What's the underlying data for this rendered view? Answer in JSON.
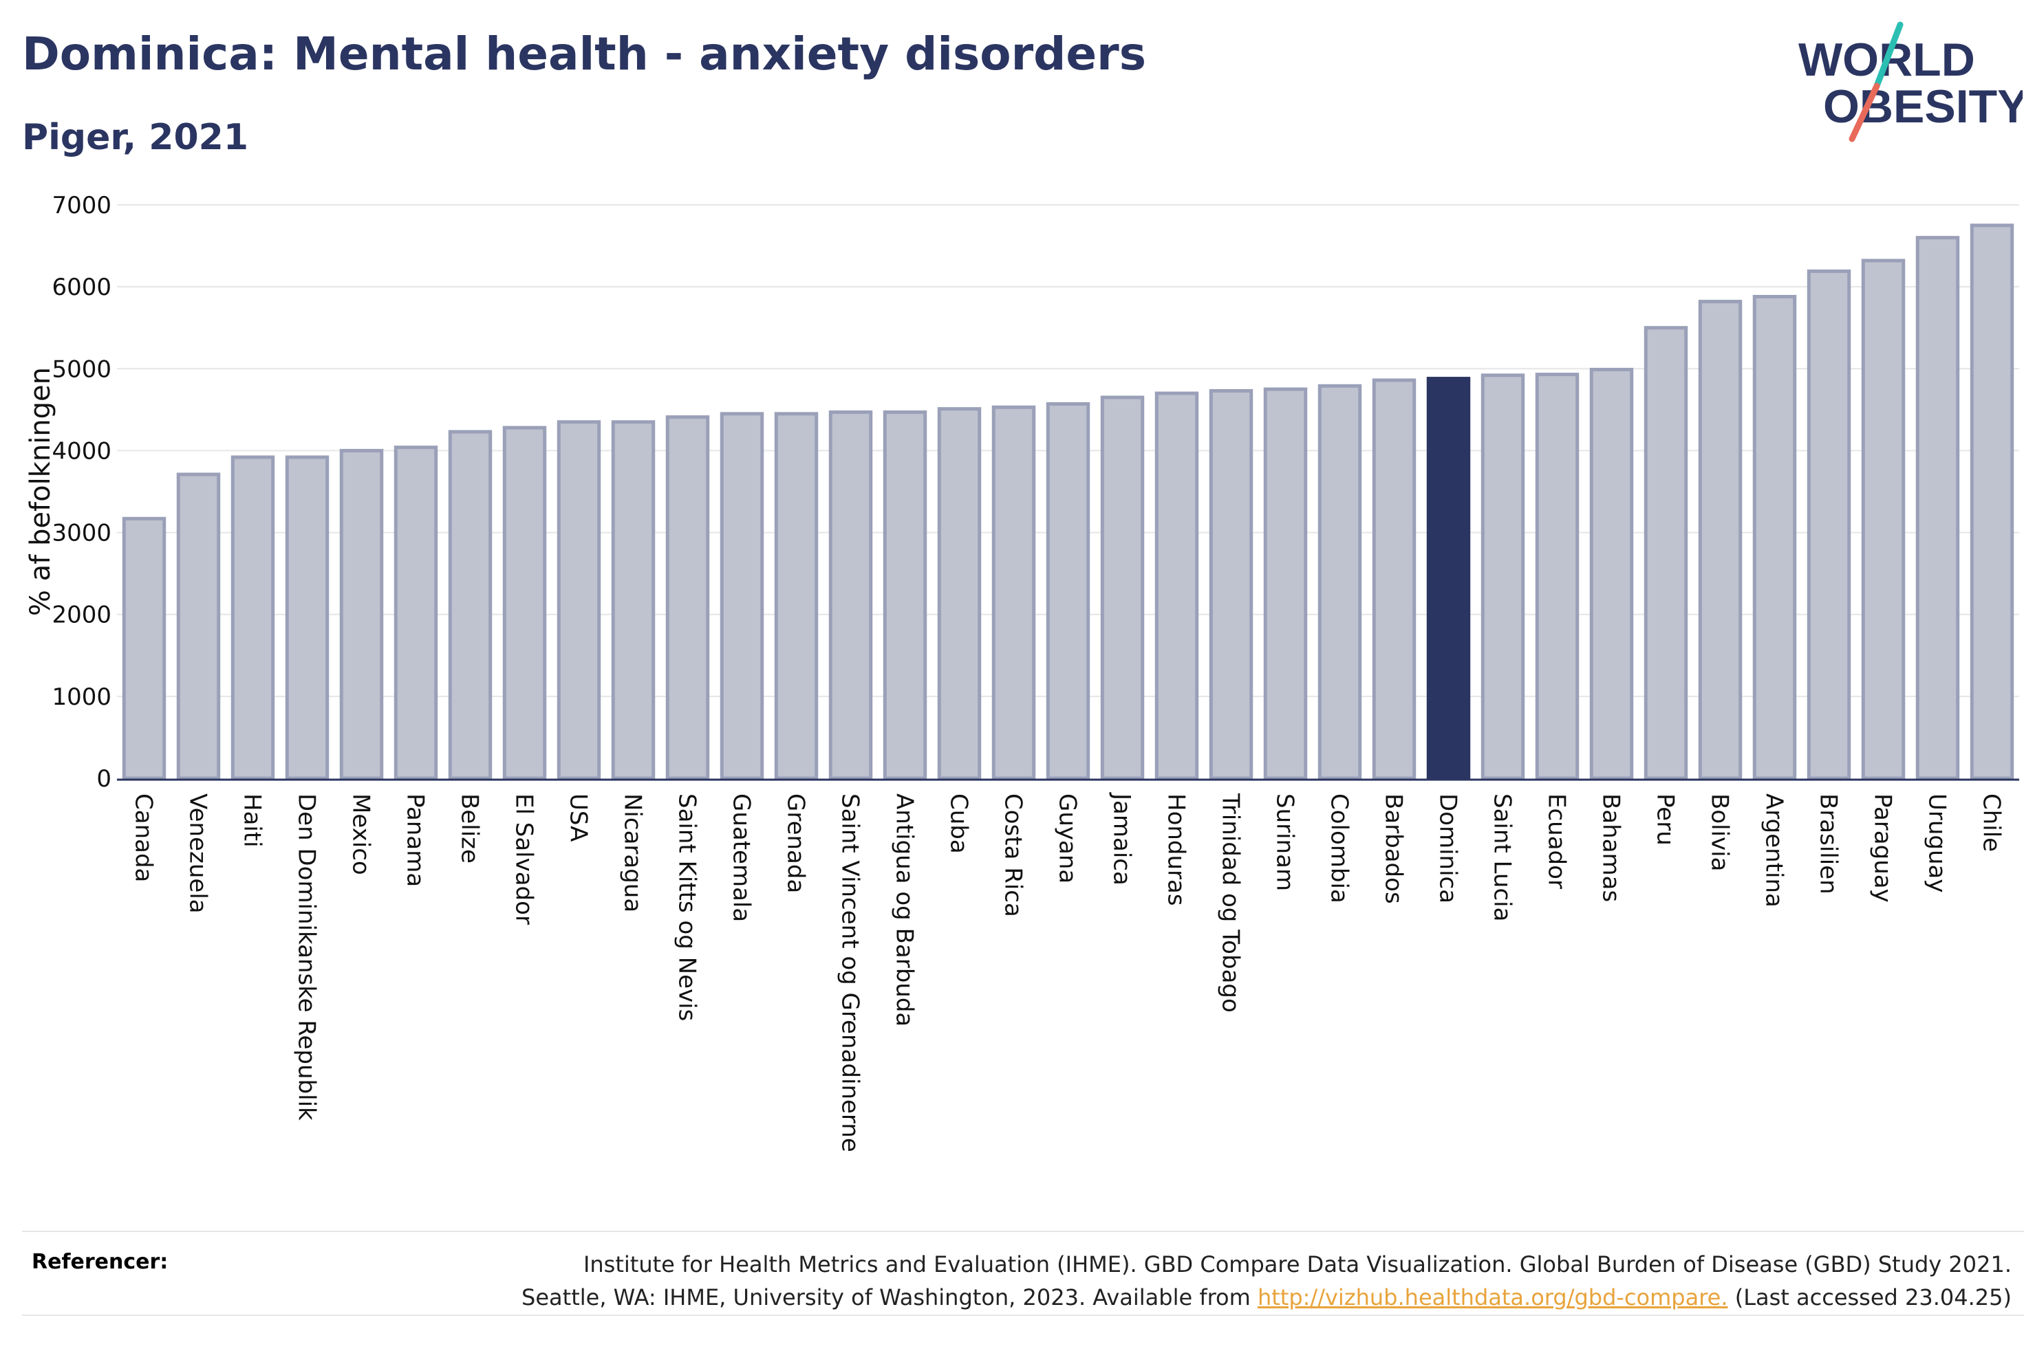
{
  "header": {
    "title": "Dominica: Mental health - anxiety disorders",
    "subtitle": "Piger, 2021"
  },
  "logo": {
    "line1": "WORLD",
    "line2": "OBESITY",
    "colors": {
      "text": "#2b3561",
      "slash_teal": "#2bbfb3",
      "slash_coral": "#e86a5a"
    }
  },
  "chart_data": {
    "type": "bar",
    "ylabel": "% af befolkningen",
    "xlabel": "",
    "ylim": [
      0,
      7000
    ],
    "yticks": [
      0,
      1000,
      2000,
      3000,
      4000,
      5000,
      6000,
      7000
    ],
    "grid": true,
    "highlight": "Dominica",
    "colors": {
      "bar": "#bfc2cf",
      "bar_edge": "#9aa0b8",
      "highlight": "#2b3561",
      "grid": "#e6e6e6"
    },
    "categories": [
      "Canada",
      "Venezuela",
      "Haiti",
      "Den Dominikanske Republik",
      "Mexico",
      "Panama",
      "Belize",
      "El Salvador",
      "USA",
      "Nicaragua",
      "Saint Kitts og Nevis",
      "Guatemala",
      "Grenada",
      "Saint Vincent og Grenadinerne",
      "Antigua og Barbuda",
      "Cuba",
      "Costa Rica",
      "Guyana",
      "Jamaica",
      "Honduras",
      "Trinidad og Tobago",
      "Surinam",
      "Colombia",
      "Barbados",
      "Dominica",
      "Saint Lucia",
      "Ecuador",
      "Bahamas",
      "Peru",
      "Bolivia",
      "Argentina",
      "Brasilien",
      "Paraguay",
      "Uruguay",
      "Chile"
    ],
    "values": [
      3170,
      3710,
      3920,
      3920,
      4000,
      4040,
      4230,
      4280,
      4350,
      4350,
      4410,
      4450,
      4450,
      4470,
      4470,
      4510,
      4530,
      4570,
      4650,
      4700,
      4730,
      4750,
      4790,
      4860,
      4880,
      4920,
      4930,
      4990,
      5500,
      5820,
      5880,
      6190,
      6320,
      6600,
      6750
    ]
  },
  "footer": {
    "label": "Referencer:",
    "line1": "Institute for Health Metrics and Evaluation (IHME). GBD Compare Data Visualization. Global Burden of Disease (GBD) Study 2021.",
    "line2_prefix": "Seattle, WA: IHME, University of Washington, 2023. Available from ",
    "link": "http://vizhub.healthdata.org/gbd-compare.",
    "line2_suffix": " (Last accessed 23.04.25)"
  }
}
